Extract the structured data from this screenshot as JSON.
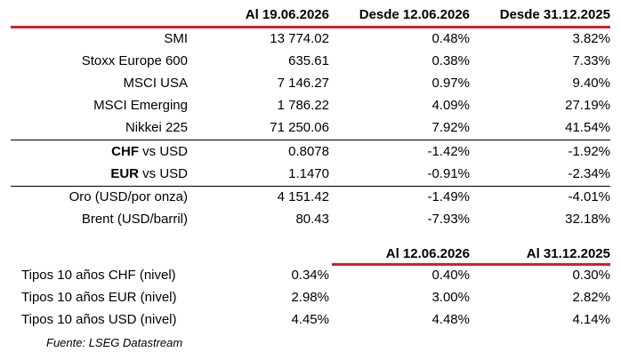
{
  "header": {
    "col1": "Al 19.06.2026",
    "col2": "Desde 12.06.2026",
    "col3": "Desde 31.12.2025"
  },
  "equities": [
    {
      "name": "SMI",
      "level": "13 774.02",
      "wtd": "0.48%",
      "ytd": "3.82%"
    },
    {
      "name": "Stoxx Europe 600",
      "level": "635.61",
      "wtd": "0.38%",
      "ytd": "7.33%"
    },
    {
      "name": "MSCI USA",
      "level": "7 146.27",
      "wtd": "0.97%",
      "ytd": "9.40%"
    },
    {
      "name": "MSCI Emerging",
      "level": "1 786.22",
      "wtd": "4.09%",
      "ytd": "27.19%"
    },
    {
      "name": "Nikkei 225",
      "level": "71 250.06",
      "wtd": "7.92%",
      "ytd": "41.54%"
    }
  ],
  "fx": [
    {
      "ccy": "CHF",
      "suffix": " vs USD",
      "level": "0.8078",
      "wtd": "-1.42%",
      "ytd": "-1.92%"
    },
    {
      "ccy": "EUR",
      "suffix": " vs USD",
      "level": "1.1470",
      "wtd": "-0.91%",
      "ytd": "-2.34%"
    }
  ],
  "commodities": [
    {
      "name": "Oro (USD/por onza)",
      "level": "4 151.42",
      "wtd": "-1.49%",
      "ytd": "-4.01%"
    },
    {
      "name": "Brent (USD/barril)",
      "level": "80.43",
      "wtd": "-7.93%",
      "ytd": "32.18%"
    }
  ],
  "rates_header": {
    "col2": "Al 12.06.2026",
    "col3": "Al 31.12.2025"
  },
  "rates": [
    {
      "name": "Tipos 10 años CHF (nivel)",
      "level": "0.34%",
      "prev": "0.40%",
      "ye": "0.30%"
    },
    {
      "name": "Tipos 10 años EUR (nivel)",
      "level": "2.98%",
      "prev": "3.00%",
      "ye": "2.82%"
    },
    {
      "name": "Tipos 10 años USD (nivel)",
      "level": "4.45%",
      "prev": "4.48%",
      "ye": "4.14%"
    }
  ],
  "source": "Fuente: LSEG Datastream",
  "colors": {
    "accent_red": "#c8262e"
  }
}
